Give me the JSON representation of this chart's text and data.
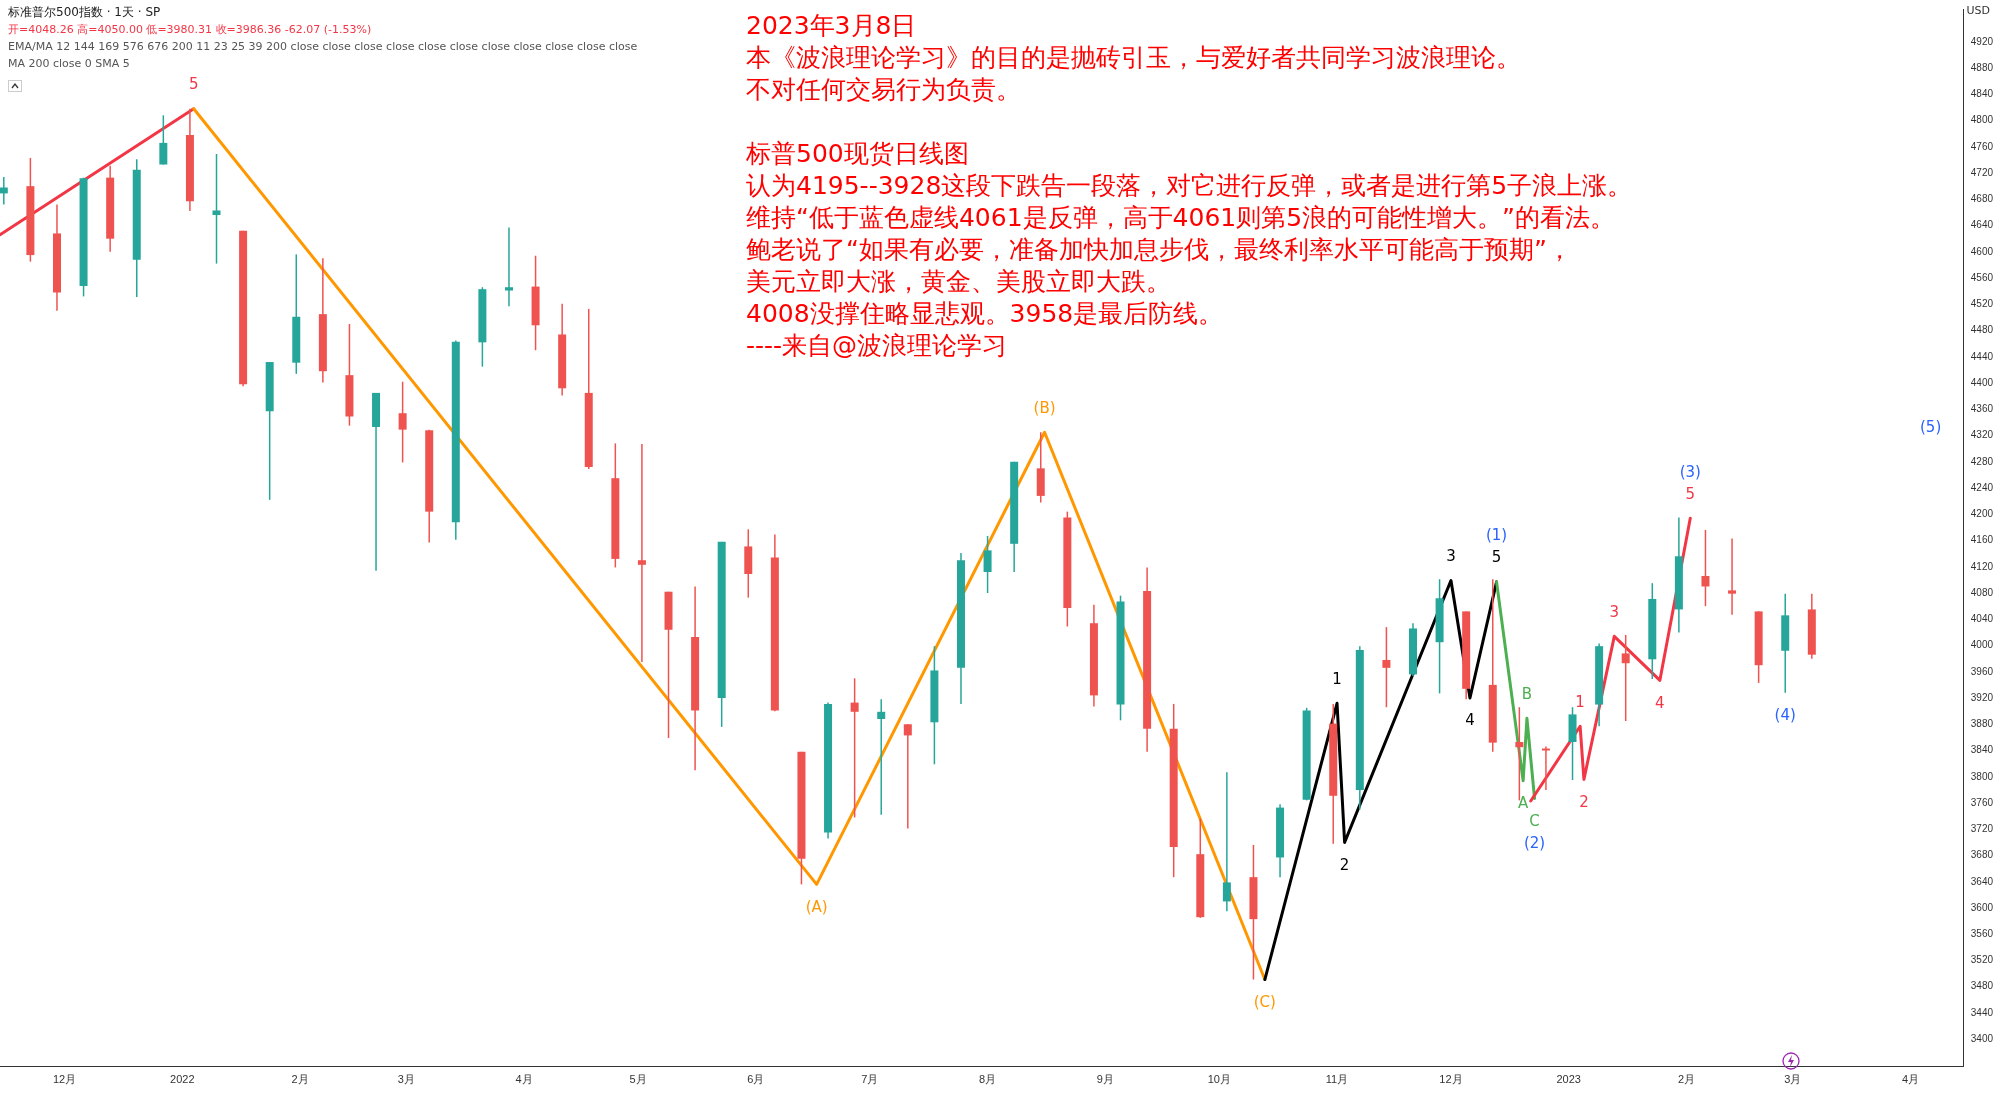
{
  "chart_data": {
    "type": "candlestick",
    "title": "2023年3月8日",
    "ylabel": "USD",
    "x": [
      "2021-11-15",
      "2021-11-22",
      "2021-11-29",
      "2021-12-06",
      "2021-12-13",
      "2021-12-20",
      "2021-12-27",
      "2022-01-03",
      "2022-01-10",
      "2022-01-17",
      "2022-01-24",
      "2022-01-31",
      "2022-02-07",
      "2022-02-14",
      "2022-02-21",
      "2022-02-28",
      "2022-03-07",
      "2022-03-14",
      "2022-03-21",
      "2022-03-28",
      "2022-04-04",
      "2022-04-11",
      "2022-04-18",
      "2022-04-25",
      "2022-05-02",
      "2022-05-09",
      "2022-05-16",
      "2022-05-23",
      "2022-05-30",
      "2022-06-06",
      "2022-06-13",
      "2022-06-20",
      "2022-06-27",
      "2022-07-04",
      "2022-07-11",
      "2022-07-18",
      "2022-07-25",
      "2022-08-01",
      "2022-08-08",
      "2022-08-15",
      "2022-08-22",
      "2022-08-29",
      "2022-09-05",
      "2022-09-12",
      "2022-09-19",
      "2022-09-26",
      "2022-10-03",
      "2022-10-10",
      "2022-10-17",
      "2022-10-24",
      "2022-10-31",
      "2022-11-07",
      "2022-11-14",
      "2022-11-21",
      "2022-11-28",
      "2022-12-05",
      "2022-12-12",
      "2022-12-19",
      "2022-12-26",
      "2023-01-02",
      "2023-01-09",
      "2023-01-16",
      "2023-01-23",
      "2023-01-30",
      "2023-02-06",
      "2023-02-13",
      "2023-02-20",
      "2023-02-27",
      "2023-03-06"
    ],
    "ohlc": [
      [
        4689,
        4714,
        4672,
        4698
      ],
      [
        4700,
        4743,
        4585,
        4595
      ],
      [
        4628,
        4672,
        4510,
        4538
      ],
      [
        4548,
        4713,
        4532,
        4712
      ],
      [
        4713,
        4731,
        4600,
        4620
      ],
      [
        4588,
        4741,
        4531,
        4725
      ],
      [
        4733,
        4808,
        4733,
        4766
      ],
      [
        4778,
        4818,
        4662,
        4677
      ],
      [
        4656,
        4749,
        4582,
        4663
      ],
      [
        4632,
        4632,
        4395,
        4398
      ],
      [
        4357,
        4432,
        4222,
        4432
      ],
      [
        4431,
        4596,
        4414,
        4501
      ],
      [
        4505,
        4590,
        4401,
        4418
      ],
      [
        4412,
        4490,
        4335,
        4349
      ],
      [
        4333,
        4385,
        4114,
        4385
      ],
      [
        4354,
        4402,
        4279,
        4329
      ],
      [
        4328,
        4329,
        4157,
        4204
      ],
      [
        4188,
        4465,
        4161,
        4463
      ],
      [
        4462,
        4546,
        4425,
        4543
      ],
      [
        4541,
        4637,
        4517,
        4546
      ],
      [
        4547,
        4594,
        4450,
        4488
      ],
      [
        4474,
        4521,
        4381,
        4392
      ],
      [
        4385,
        4513,
        4269,
        4272
      ],
      [
        4255,
        4308,
        4119,
        4132
      ],
      [
        4130,
        4307,
        3975,
        4123
      ],
      [
        4082,
        4082,
        3859,
        4024
      ],
      [
        4013,
        4090,
        3810,
        3901
      ],
      [
        3920,
        4158,
        3876,
        4158
      ],
      [
        4151,
        4177,
        4073,
        4109
      ],
      [
        4134,
        4169,
        3900,
        3901
      ],
      [
        3838,
        3838,
        3636,
        3675
      ],
      [
        3715,
        3913,
        3706,
        3911
      ],
      [
        3913,
        3950,
        3738,
        3899
      ],
      [
        3888,
        3918,
        3742,
        3899
      ],
      [
        3880,
        3880,
        3721,
        3863
      ],
      [
        3883,
        3999,
        3819,
        3962
      ],
      [
        3966,
        4141,
        3911,
        4130
      ],
      [
        4112,
        4167,
        4080,
        4145
      ],
      [
        4155,
        4280,
        4112,
        4280
      ],
      [
        4270,
        4325,
        4218,
        4228
      ],
      [
        4195,
        4204,
        4029,
        4057
      ],
      [
        4034,
        4062,
        3907,
        3924
      ],
      [
        3910,
        4076,
        3886,
        4067
      ],
      [
        4083,
        4119,
        3838,
        3873
      ],
      [
        3873,
        3911,
        3647,
        3693
      ],
      [
        3682,
        3736,
        3585,
        3586
      ],
      [
        3610,
        3807,
        3595,
        3639
      ],
      [
        3647,
        3696,
        3491,
        3583
      ],
      [
        3677,
        3758,
        3647,
        3753
      ],
      [
        3765,
        3905,
        3764,
        3901
      ],
      [
        3881,
        3911,
        3698,
        3771
      ],
      [
        3780,
        3999,
        3750,
        3993
      ],
      [
        3978,
        4028,
        3906,
        3966
      ],
      [
        3956,
        4034,
        3953,
        4026
      ],
      [
        4005,
        4101,
        3927,
        4072
      ],
      [
        4052,
        4052,
        3918,
        3934
      ],
      [
        3940,
        4101,
        3838,
        3852
      ],
      [
        3853,
        3906,
        3764,
        3845
      ],
      [
        3843,
        3846,
        3780,
        3840
      ],
      [
        3853,
        3906,
        3795,
        3895
      ],
      [
        3910,
        4003,
        3877,
        3999
      ],
      [
        3988,
        4016,
        3885,
        3973
      ],
      [
        3979,
        4095,
        3949,
        4071
      ],
      [
        4055,
        4195,
        4020,
        4136
      ],
      [
        4106,
        4176,
        4060,
        4090
      ],
      [
        4084,
        4163,
        4047,
        4079
      ],
      [
        4052,
        4052,
        3943,
        3970
      ],
      [
        3992,
        4079,
        3928,
        4046
      ],
      [
        4055,
        4079,
        3980,
        3986
      ]
    ],
    "series": [
      {
        "type": "line",
        "color": "#f23645",
        "x": [
          "2021-11-14",
          "2022-01-04"
        ],
        "values": [
          4626,
          4818
        ]
      },
      {
        "type": "line",
        "color": "#ff9800",
        "x": [
          "2022-01-04",
          "2022-06-17",
          "2022-08-16",
          "2022-10-13"
        ],
        "values": [
          4818,
          3636,
          4325,
          3491
        ]
      },
      {
        "type": "line",
        "color": "#000000",
        "x": [
          "2022-10-13",
          "2022-11-01",
          "2022-11-03",
          "2022-12-01",
          "2022-12-06",
          "2022-12-13"
        ],
        "values": [
          3491,
          3912,
          3700,
          4099,
          3920,
          4097
        ]
      },
      {
        "type": "line",
        "color": "#4caf50",
        "x": [
          "2022-12-13",
          "2022-12-20",
          "2022-12-21",
          "2022-12-23"
        ],
        "values": [
          4097,
          3794,
          3889,
          3767
        ]
      },
      {
        "type": "line",
        "color": "#f23645",
        "x": [
          "2022-12-22",
          "2023-01-04",
          "2023-01-05",
          "2023-01-13",
          "2023-01-25",
          "2023-02-02"
        ],
        "values": [
          3763,
          3877,
          3796,
          4014,
          3947,
          4194
        ]
      }
    ],
    "xlim": [
      "2021-11-14",
      "2023-04-15"
    ],
    "xticks": [
      {
        "value": "2021-12-01",
        "label": "12月"
      },
      {
        "value": "2022-01-01",
        "label": "2022"
      },
      {
        "value": "2022-02-01",
        "label": "2月"
      },
      {
        "value": "2022-03-01",
        "label": "3月"
      },
      {
        "value": "2022-04-01",
        "label": "4月"
      },
      {
        "value": "2022-05-01",
        "label": "5月"
      },
      {
        "value": "2022-06-01",
        "label": "6月"
      },
      {
        "value": "2022-07-01",
        "label": "7月"
      },
      {
        "value": "2022-08-01",
        "label": "8月"
      },
      {
        "value": "2022-09-01",
        "label": "9月"
      },
      {
        "value": "2022-10-01",
        "label": "10月"
      },
      {
        "value": "2022-11-01",
        "label": "11月"
      },
      {
        "value": "2022-12-01",
        "label": "12月"
      },
      {
        "value": "2023-01-01",
        "label": "2023"
      },
      {
        "value": "2023-02-01",
        "label": "2月"
      },
      {
        "value": "2023-03-01",
        "label": "3月"
      },
      {
        "value": "2023-04-01",
        "label": "4月"
      }
    ],
    "ylim": [
      3358,
      4970
    ],
    "yticks": [
      3400,
      3440,
      3480,
      3520,
      3560,
      3600,
      3640,
      3680,
      3720,
      3760,
      3800,
      3840,
      3880,
      3920,
      3960,
      4000,
      4040,
      4080,
      4120,
      4160,
      4200,
      4240,
      4280,
      4320,
      4360,
      4400,
      4440,
      4480,
      4520,
      4560,
      4600,
      4640,
      4680,
      4720,
      4760,
      4800,
      4840,
      4880,
      4920
    ],
    "grid": false,
    "legend": false,
    "annotations": [
      "标准普尔500指数 · 1天 · SP",
      "开=4048.26 高=4050.00 低=3980.31 收=3986.36 -62.07 (-1.53%)",
      "EMA/MA 12 144 169 576 676 200 11 23 25 39 200 close close close close close close close close close close close",
      "MA 200 close 0 SMA 5",
      "本《波浪理论学习》的目的是抛砖引玉，与爱好者共同学习波浪理论。",
      "不对任何交易行为负责。",
      "标普500现货日线图",
      "认为4195--3928这段下跌告一段落，对它进行反弹，或者是进行第5子浪上涨。",
      "维持“低于蓝色虚线4061是反弹，高于4061则第5浪的可能性增大。”的看法。",
      "鲍老说了“如果有必要，准备加快加息步伐，最终利率水平可能高于预期”，",
      "美元立即大涨，黄金、美股立即大跌。",
      "4008没撑住略显悲观。3958是最后防线。",
      "----来自@波浪理论学习",
      "(5)",
      {
        "text": "5",
        "x": "2022-01-04",
        "y": 4818
      },
      {
        "text": "(A)",
        "x": "2022-06-17",
        "y": 3636
      },
      {
        "text": "(B)",
        "x": "2022-08-16",
        "y": 4325
      },
      {
        "text": "(C)",
        "x": "2022-10-13",
        "y": 3491
      },
      {
        "text": "1",
        "x": "2022-11-01",
        "y": 3912
      },
      {
        "text": "2",
        "x": "2022-11-03",
        "y": 3700
      },
      {
        "text": "3",
        "x": "2022-12-01",
        "y": 4099
      },
      {
        "text": "4",
        "x": "2022-12-06",
        "y": 3920
      },
      {
        "text": "5",
        "x": "2022-12-13",
        "y": 4097
      },
      {
        "text": "(1)",
        "x": "2022-12-13",
        "y": 4097
      },
      {
        "text": "A",
        "x": "2022-12-20",
        "y": 3794
      },
      {
        "text": "B",
        "x": "2022-12-21",
        "y": 3889
      },
      {
        "text": "C",
        "x": "2022-12-23",
        "y": 3767
      },
      {
        "text": "(2)",
        "x": "2022-12-23",
        "y": 3767
      },
      {
        "text": "1",
        "x": "2023-01-04",
        "y": 3877
      },
      {
        "text": "2",
        "x": "2023-01-05",
        "y": 3796
      },
      {
        "text": "3",
        "x": "2023-01-13",
        "y": 4014
      },
      {
        "text": "4",
        "x": "2023-01-25",
        "y": 3947
      },
      {
        "text": "5",
        "x": "2023-02-02",
        "y": 4194
      },
      {
        "text": "(3)",
        "x": "2023-02-02",
        "y": 4194
      },
      {
        "text": "(4)",
        "x": "2023-02-27",
        "y": 3928
      }
    ]
  }
}
